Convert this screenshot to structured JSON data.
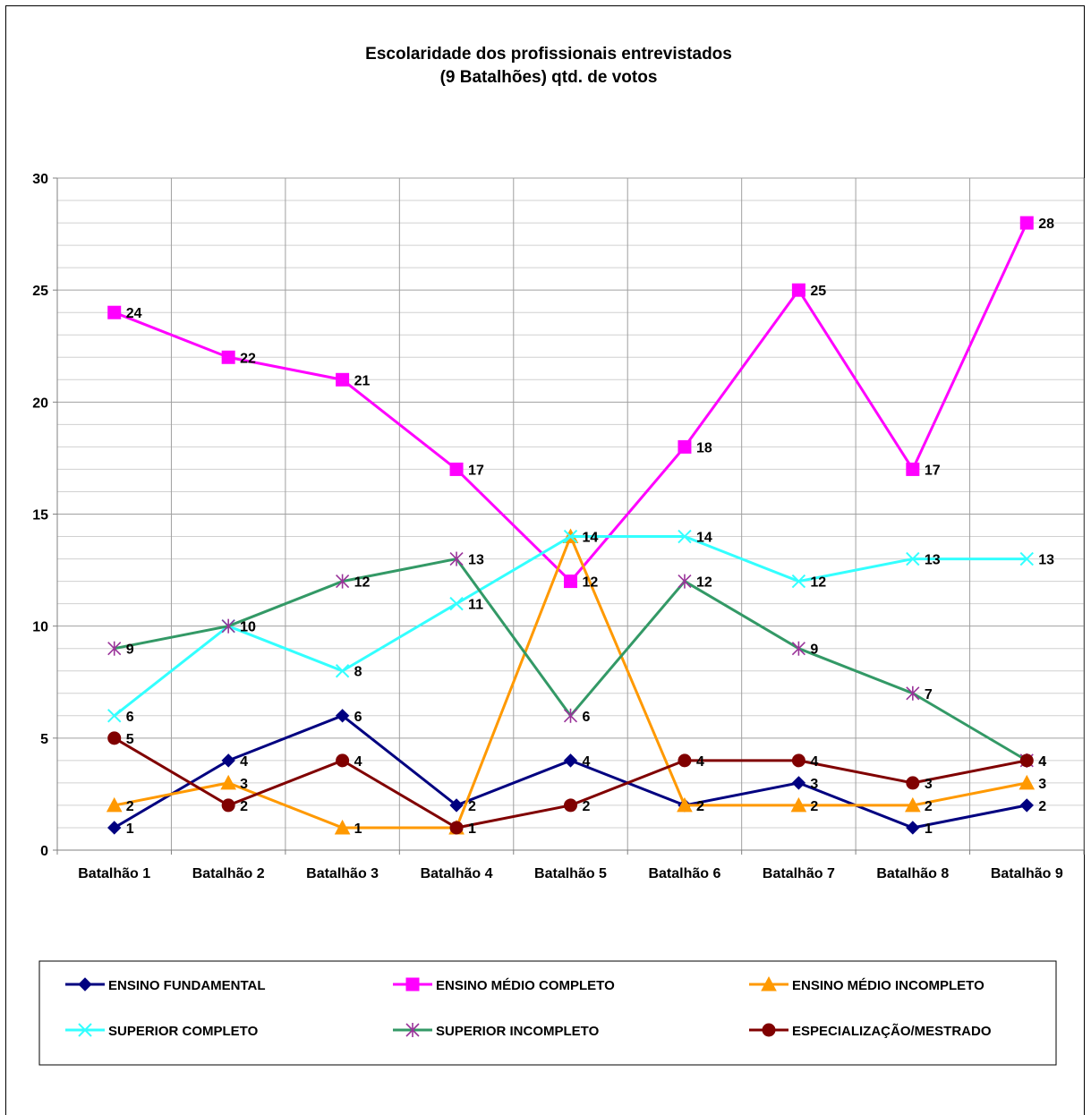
{
  "chart_data": {
    "type": "line",
    "title_lines": [
      "Escolaridade dos profissionais entrevistados",
      "(9 Batalhões) qtd. de votos"
    ],
    "categories": [
      "Batalhão 1",
      "Batalhão 2",
      "Batalhão 3",
      "Batalhão 4",
      "Batalhão 5",
      "Batalhão 6",
      "Batalhão 7",
      "Batalhão 8",
      "Batalhão 9"
    ],
    "ylim": [
      0,
      30
    ],
    "yticks": [
      0,
      5,
      10,
      15,
      20,
      25,
      30
    ],
    "grid": "on",
    "legend_position": "bottom",
    "series": [
      {
        "name": "ENSINO FUNDAMENTAL",
        "color": "#000080",
        "marker": "diamond",
        "values": [
          1,
          4,
          6,
          2,
          4,
          2,
          3,
          1,
          2
        ]
      },
      {
        "name": "ENSINO MÉDIO COMPLETO",
        "color": "#FF00FF",
        "marker": "square",
        "values": [
          24,
          22,
          21,
          17,
          12,
          18,
          25,
          17,
          28
        ]
      },
      {
        "name": "ENSINO MÉDIO INCOMPLETO",
        "color": "#FF9900",
        "marker": "triangle",
        "values": [
          2,
          3,
          1,
          1,
          14,
          2,
          2,
          2,
          3
        ]
      },
      {
        "name": "SUPERIOR COMPLETO",
        "color": "#33FFFF",
        "marker": "x",
        "values": [
          6,
          10,
          8,
          11,
          14,
          14,
          12,
          13,
          13
        ]
      },
      {
        "name": "SUPERIOR INCOMPLETO",
        "color": "#339966",
        "marker": "star",
        "values": [
          9,
          10,
          12,
          13,
          6,
          12,
          9,
          7,
          4
        ]
      },
      {
        "name": "ESPECIALIZAÇÃO/MESTRADO",
        "color": "#800000",
        "marker": "circle",
        "values": [
          5,
          2,
          4,
          1,
          2,
          4,
          4,
          3,
          4
        ]
      }
    ]
  }
}
